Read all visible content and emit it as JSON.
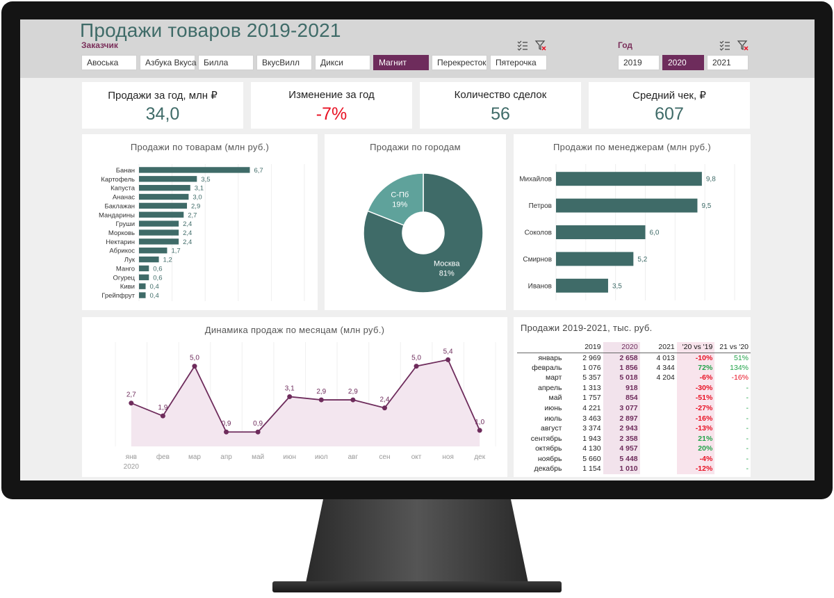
{
  "title": "Продажи товаров 2019-2021",
  "customer_slicer": {
    "title": "Заказчик",
    "items": [
      {
        "label": "Авоська",
        "active": false
      },
      {
        "label": "Азбука Вкуса",
        "active": false
      },
      {
        "label": "Билла",
        "active": false
      },
      {
        "label": "ВкусВилл",
        "active": false
      },
      {
        "label": "Дикси",
        "active": false
      },
      {
        "label": "Магнит",
        "active": true
      },
      {
        "label": "Перекресток",
        "active": false
      },
      {
        "label": "Пятерочка",
        "active": false
      }
    ]
  },
  "year_slicer": {
    "title": "Год",
    "items": [
      {
        "label": "2019",
        "active": false
      },
      {
        "label": "2020",
        "active": true
      },
      {
        "label": "2021",
        "active": false
      }
    ]
  },
  "kpis": [
    {
      "label": "Продажи за год, млн ₽",
      "value": "34,0"
    },
    {
      "label": "Изменение за год",
      "value": "-7%"
    },
    {
      "label": "Количество сделок",
      "value": "56"
    },
    {
      "label": "Средний чек, ₽",
      "value": "607"
    }
  ],
  "colors": {
    "accent": "#6e2c5c",
    "teal": "#3f6b68",
    "teal_light": "#5fa29b",
    "negative": "#e81123",
    "positive": "#22a34a"
  },
  "chart_data": [
    {
      "type": "bar",
      "orientation": "horizontal",
      "title": "Продажи по товарам (млн руб.)",
      "categories": [
        "Банан",
        "Картофель",
        "Капуста",
        "Ананас",
        "Баклажан",
        "Мандарины",
        "Груши",
        "Морковь",
        "Нектарин",
        "Абрикос",
        "Лук",
        "Манго",
        "Огурец",
        "Киви",
        "Грейпфрут"
      ],
      "values": [
        6.7,
        3.5,
        3.1,
        3.0,
        2.9,
        2.7,
        2.4,
        2.4,
        2.4,
        1.7,
        1.2,
        0.6,
        0.6,
        0.4,
        0.4
      ],
      "value_labels": [
        "6,7",
        "3,5",
        "3,1",
        "3,0",
        "2,9",
        "2,7",
        "2,4",
        "2,4",
        "2,4",
        "1,7",
        "1,2",
        "0,6",
        "0,6",
        "0,4",
        "0,4"
      ],
      "xlim": [
        0,
        10
      ],
      "grid": true
    },
    {
      "type": "pie",
      "donut": true,
      "title": "Продажи по городам",
      "slices": [
        {
          "label": "Москва",
          "value": 81,
          "value_label": "81%"
        },
        {
          "label": "С-Пб",
          "value": 19,
          "value_label": "19%"
        }
      ]
    },
    {
      "type": "bar",
      "orientation": "horizontal",
      "title": "Продажи по менеджерам (млн руб.)",
      "categories": [
        "Михайлов",
        "Петров",
        "Соколов",
        "Смирнов",
        "Иванов"
      ],
      "values": [
        9.8,
        9.5,
        6.0,
        5.2,
        3.5
      ],
      "value_labels": [
        "9,8",
        "9,5",
        "6,0",
        "5,2",
        "3,5"
      ],
      "xlim": [
        0,
        12
      ],
      "grid": true
    },
    {
      "type": "area",
      "title": "Динамика продаж по месяцам (млн руб.)",
      "categories": [
        "янв",
        "фев",
        "мар",
        "апр",
        "май",
        "июн",
        "июл",
        "авг",
        "сен",
        "окт",
        "ноя",
        "дек"
      ],
      "x_sublabel": "2020",
      "values": [
        2.7,
        1.9,
        5.0,
        0.9,
        0.9,
        3.1,
        2.9,
        2.9,
        2.4,
        5.0,
        5.4,
        1.0
      ],
      "value_labels": [
        "2,7",
        "1,9",
        "5,0",
        "0,9",
        "0,9",
        "3,1",
        "2,9",
        "2,9",
        "2,4",
        "5,0",
        "5,4",
        "1,0"
      ],
      "ylim": [
        0,
        6.5
      ],
      "grid": true
    }
  ],
  "table": {
    "title": "Продажи 2019-2021, тыс. руб.",
    "headers": [
      "",
      "2019",
      "2020",
      "2021",
      "'20 vs '19",
      "21 vs '20"
    ],
    "rows": [
      {
        "month": "январь",
        "y2019": "2 969",
        "y2020": "2 658",
        "y2021": "4 013",
        "d1": "-10%",
        "d2": "51%"
      },
      {
        "month": "февраль",
        "y2019": "1 076",
        "y2020": "1 856",
        "y2021": "4 344",
        "d1": "72%",
        "d2": "134%"
      },
      {
        "month": "март",
        "y2019": "5 357",
        "y2020": "5 018",
        "y2021": "4 204",
        "d1": "-6%",
        "d2": "-16%"
      },
      {
        "month": "апрель",
        "y2019": "1 313",
        "y2020": "918",
        "y2021": "",
        "d1": "-30%",
        "d2": "-"
      },
      {
        "month": "май",
        "y2019": "1 757",
        "y2020": "854",
        "y2021": "",
        "d1": "-51%",
        "d2": "-"
      },
      {
        "month": "июнь",
        "y2019": "4 221",
        "y2020": "3 077",
        "y2021": "",
        "d1": "-27%",
        "d2": "-"
      },
      {
        "month": "июль",
        "y2019": "3 463",
        "y2020": "2 897",
        "y2021": "",
        "d1": "-16%",
        "d2": "-"
      },
      {
        "month": "август",
        "y2019": "3 374",
        "y2020": "2 943",
        "y2021": "",
        "d1": "-13%",
        "d2": "-"
      },
      {
        "month": "сентябрь",
        "y2019": "1 943",
        "y2020": "2 358",
        "y2021": "",
        "d1": "21%",
        "d2": "-"
      },
      {
        "month": "октябрь",
        "y2019": "4 130",
        "y2020": "4 957",
        "y2021": "",
        "d1": "20%",
        "d2": "-"
      },
      {
        "month": "ноябрь",
        "y2019": "5 660",
        "y2020": "5 448",
        "y2021": "",
        "d1": "-4%",
        "d2": "-"
      },
      {
        "month": "декабрь",
        "y2019": "1 154",
        "y2020": "1 010",
        "y2021": "",
        "d1": "-12%",
        "d2": "-"
      }
    ]
  }
}
